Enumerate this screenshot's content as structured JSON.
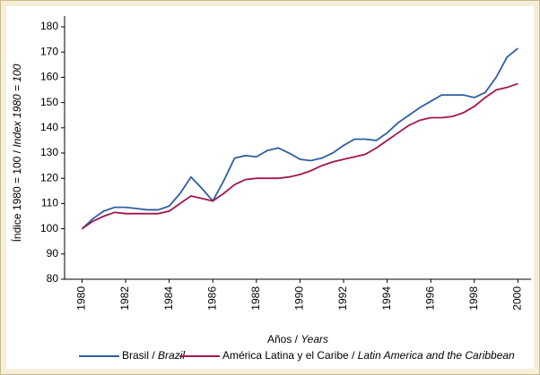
{
  "chart_data": {
    "type": "line",
    "xlabel": "Años / Years",
    "ylabel": "Índice 1980 = 100 / Index 1980 = 100",
    "x": [
      1980,
      1980.5,
      1981,
      1981.5,
      1982,
      1982.5,
      1983,
      1983.5,
      1984,
      1984.5,
      1985,
      1985.5,
      1986,
      1986.5,
      1987,
      1987.5,
      1988,
      1988.5,
      1989,
      1989.5,
      1990,
      1990.5,
      1991,
      1991.5,
      1992,
      1992.5,
      1993,
      1993.5,
      1994,
      1994.5,
      1995,
      1995.5,
      1996,
      1996.5,
      1997,
      1997.5,
      1998,
      1998.5,
      1999,
      1999.5,
      2000
    ],
    "series": [
      {
        "name": "Brasil / Brazil",
        "color": "#2e5f9e",
        "values": [
          100,
          104,
          107,
          108.5,
          108.5,
          108,
          107.5,
          107.5,
          109,
          114,
          120.5,
          116,
          111,
          119,
          128,
          129,
          128.5,
          131,
          132,
          130,
          127.5,
          127,
          128,
          130,
          133,
          135.5,
          135.5,
          135,
          138,
          142,
          145,
          148,
          150.5,
          153,
          153,
          153,
          152,
          154,
          160,
          168,
          171.5
        ]
      },
      {
        "name": "América Latina y el Caribe / Latin America and the Caribbean",
        "color": "#a3164f",
        "values": [
          100,
          103,
          105,
          106.5,
          106,
          106,
          106,
          106,
          107,
          110,
          113,
          112,
          111,
          114,
          117.5,
          119.5,
          120,
          120,
          120,
          120.5,
          121.5,
          123,
          125,
          126.5,
          127.5,
          128.5,
          129.5,
          132,
          135,
          138,
          141,
          143,
          144,
          144,
          144.5,
          146,
          148.5,
          152,
          155,
          156,
          157.5
        ]
      }
    ],
    "xlim": [
      1979.2,
      2000.6
    ],
    "xticks": [
      1980,
      1982,
      1984,
      1986,
      1988,
      1990,
      1992,
      1994,
      1996,
      1998,
      2000
    ],
    "ylim": [
      80,
      180
    ],
    "yticks": [
      80,
      90,
      100,
      110,
      120,
      130,
      140,
      150,
      160,
      170,
      180
    ],
    "grid": false
  }
}
